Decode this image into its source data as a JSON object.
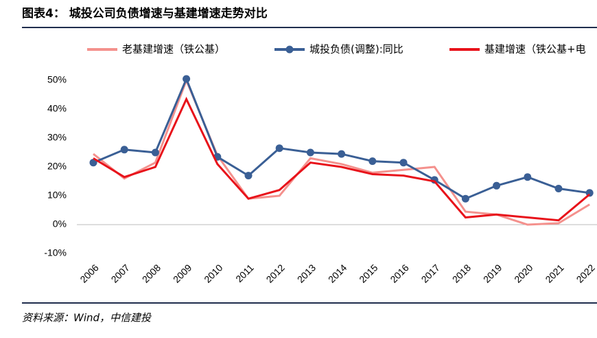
{
  "chart_data": {
    "type": "line",
    "title": "图表4：  城投公司负债增速与基建增速走势对比",
    "source": "资料来源：Wind，中信建投",
    "categories": [
      "2006",
      "2007",
      "2008",
      "2009",
      "2010",
      "2011",
      "2012",
      "2013",
      "2014",
      "2015",
      "2016",
      "2017",
      "2018",
      "2019",
      "2020",
      "2021",
      "2022"
    ],
    "series": [
      {
        "name": "老基建增速（铁公基）",
        "color": "#f4918d",
        "values": [
          24.5,
          16,
          21.5,
          50,
          24,
          9,
          10,
          23,
          21,
          18,
          19,
          20,
          4.5,
          3.5,
          0,
          0.5,
          7
        ]
      },
      {
        "name": "城投负债(调整):同比",
        "color": "#3a5f95",
        "marker": true,
        "values": [
          21.5,
          26,
          25,
          50.5,
          23.5,
          17,
          26.5,
          25,
          24.5,
          22,
          21.5,
          15.5,
          9,
          13.5,
          16.5,
          12.5,
          11
        ]
      },
      {
        "name": "基建增速（铁公基+电",
        "color": "#e8121a",
        "values": [
          23,
          16.5,
          20,
          43.5,
          21,
          9,
          12,
          21.5,
          20,
          17.5,
          17,
          15,
          2.5,
          3.5,
          2.5,
          1.5,
          10.5
        ]
      }
    ],
    "ylim": [
      -10,
      50
    ],
    "yticks": [
      {
        "value": -10,
        "label": "-10%"
      },
      {
        "value": 0,
        "label": "0%"
      },
      {
        "value": 10,
        "label": "10%"
      },
      {
        "value": 20,
        "label": "20%"
      },
      {
        "value": 30,
        "label": "30%"
      },
      {
        "value": 40,
        "label": "40%"
      },
      {
        "value": 50,
        "label": "50%"
      }
    ],
    "grid": false
  }
}
